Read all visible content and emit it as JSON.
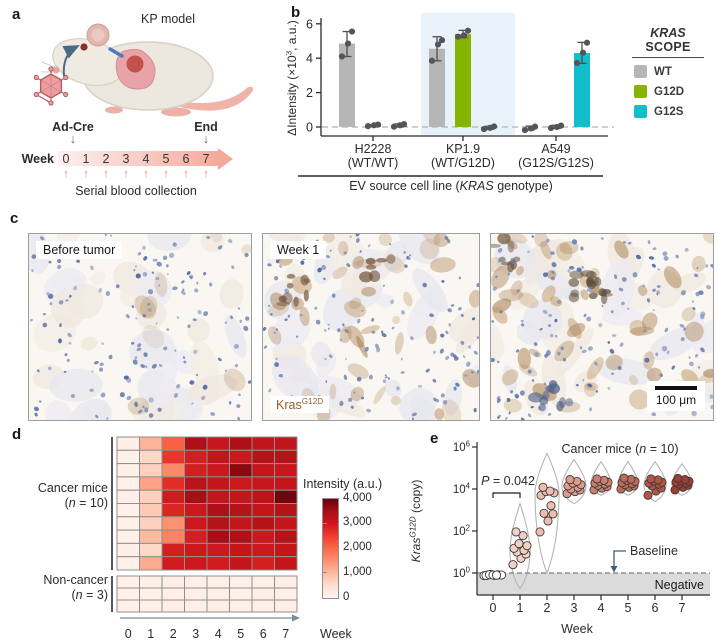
{
  "panels": {
    "a": {
      "label": "a",
      "title": "KP model",
      "timeline": {
        "induction_label": "Ad-Cre",
        "end_label": "End",
        "axis_label": "Week",
        "weeks": [
          "0",
          "1",
          "2",
          "3",
          "4",
          "5",
          "6",
          "7"
        ],
        "caption": "Serial blood collection"
      }
    },
    "b": {
      "label": "b",
      "legend": {
        "title_line1": "KRAS",
        "title_line2": "SCOPE"
      }
    },
    "c": {
      "label": "c",
      "images": [
        {
          "tag": "Before tumor"
        },
        {
          "tag": "Week 1",
          "stain_segs": [
            {
              "t": "Kras"
            },
            {
              "t": "G12D",
              "s": "sup"
            }
          ]
        },
        {
          "scalebar_label": "100 μm"
        }
      ]
    },
    "d": {
      "label": "d",
      "group1_line1": [
        {
          "t": "Cancer mice"
        }
      ],
      "group1_line2": [
        {
          "t": "("
        },
        {
          "t": "n",
          "s": "i"
        },
        {
          "t": " = 10)"
        }
      ],
      "group2_line1": [
        {
          "t": "Non-cancer"
        }
      ],
      "group2_line2": [
        {
          "t": "("
        },
        {
          "t": "n",
          "s": "i"
        },
        {
          "t": " = 3)"
        }
      ]
    },
    "e": {
      "label": "e",
      "title_segs": [
        {
          "t": "Cancer mice ("
        },
        {
          "t": "n",
          "s": "i"
        },
        {
          "t": " = 10)"
        }
      ],
      "p_segs": [
        {
          "t": "P",
          "s": "i"
        },
        {
          "t": " = 0.042"
        }
      ],
      "baseline_label": "Baseline",
      "negative_label": "Negative",
      "ylabel_segs": [
        {
          "t": "Kras",
          "s": "i"
        },
        {
          "t": "G12D",
          "s": "sup i"
        },
        {
          "t": " (copy)"
        }
      ],
      "xlabel": "Week"
    }
  },
  "chart_data": [
    {
      "id": "scope-bar-chart",
      "type": "bar",
      "ylabel_segs": [
        {
          "t": "ΔIntensity (×10"
        },
        {
          "t": "3",
          "s": "sup"
        },
        {
          "t": ", a.u.)"
        }
      ],
      "xlabel_segs": [
        {
          "t": "EV source cell line ("
        },
        {
          "t": "KRAS",
          "s": "i"
        },
        {
          "t": " genotype)"
        }
      ],
      "ylim": [
        -0.6,
        6.3
      ],
      "yticks": [
        0,
        2,
        4,
        6
      ],
      "categories": [
        [
          "H2228",
          "(WT/WT)"
        ],
        [
          "KP1.9",
          "(WT/G12D)"
        ],
        [
          "A549",
          "(G12S/G12S)"
        ]
      ],
      "highlight_group_index": 1,
      "highlight_color": "#e9f1fa",
      "series": [
        {
          "name": "WT",
          "color": "#b6b6b6",
          "values": [
            4.85,
            4.55,
            -0.08
          ],
          "errlo": [
            4.1,
            3.85,
            -0.18
          ],
          "errhi": [
            5.55,
            5.25,
            0.05
          ],
          "points": [
            [
              4.1,
              4.85,
              5.55
            ],
            [
              3.85,
              4.8,
              5.05
            ],
            [
              -0.18,
              -0.08,
              0.02
            ]
          ]
        },
        {
          "name": "G12D",
          "color": "#84b400",
          "values": [
            0.08,
            5.4,
            0.02
          ],
          "errlo": [
            0.02,
            5.2,
            -0.08
          ],
          "errhi": [
            0.14,
            5.62,
            0.1
          ],
          "points": [
            [
              0.05,
              0.1,
              0.14
            ],
            [
              5.25,
              5.32,
              5.6
            ],
            [
              -0.06,
              0.0,
              0.08
            ]
          ]
        },
        {
          "name": "G12S",
          "color": "#12bec9",
          "values": [
            0.1,
            -0.06,
            4.3
          ],
          "errlo": [
            0.0,
            -0.14,
            3.7
          ],
          "errhi": [
            0.18,
            0.04,
            4.92
          ],
          "points": [
            [
              0.02,
              0.1,
              0.17
            ],
            [
              -0.12,
              -0.05,
              0.03
            ],
            [
              3.72,
              4.32,
              4.9
            ]
          ]
        }
      ]
    },
    {
      "id": "week-intensity-heatmap",
      "type": "heatmap",
      "vmin": 0,
      "vmax": 4000,
      "weeks": [
        "0",
        "1",
        "2",
        "3",
        "4",
        "5",
        "6",
        "7"
      ],
      "xlabel": "Week",
      "colorbar": {
        "title": "Intensity (a.u.)",
        "ticks": [
          {
            "value": 4000,
            "label": "4,000"
          },
          {
            "value": 3000,
            "label": "3,000"
          },
          {
            "value": 2000,
            "label": "2,000"
          },
          {
            "value": 1000,
            "label": "1,000"
          },
          {
            "value": 0,
            "label": "0"
          }
        ]
      },
      "cancer_rows": [
        [
          150,
          1100,
          2100,
          3400,
          3050,
          3400,
          3150,
          3150
        ],
        [
          100,
          600,
          2600,
          2900,
          3100,
          3000,
          3300,
          3300
        ],
        [
          130,
          700,
          1600,
          2900,
          3000,
          3700,
          3100,
          3050
        ],
        [
          100,
          1300,
          2700,
          3250,
          3100,
          3000,
          3050,
          3100
        ],
        [
          150,
          700,
          2950,
          3500,
          3100,
          3100,
          3200,
          3900
        ],
        [
          110,
          800,
          2800,
          3000,
          3400,
          3300,
          3100,
          3300
        ],
        [
          120,
          700,
          1500,
          3000,
          3300,
          3100,
          3300,
          3100
        ],
        [
          100,
          1000,
          1700,
          2900,
          3500,
          3400,
          3000,
          3300
        ],
        [
          140,
          600,
          2900,
          3000,
          3000,
          3100,
          3000,
          3100
        ],
        [
          100,
          1200,
          2950,
          3000,
          2950,
          3100,
          2900,
          3100
        ]
      ],
      "noncancer_rows": [
        [
          120,
          140,
          160,
          150,
          150,
          140,
          150,
          160
        ],
        [
          100,
          130,
          150,
          140,
          150,
          130,
          140,
          150
        ],
        [
          110,
          150,
          170,
          150,
          160,
          150,
          150,
          170
        ]
      ]
    },
    {
      "id": "kras-copy-violin",
      "type": "scatter-violin",
      "x": [
        "0",
        "1",
        "2",
        "3",
        "4",
        "5",
        "6",
        "7"
      ],
      "ytick_exponents": [
        0,
        2,
        4,
        6
      ],
      "baseline_value": 1,
      "values_by_week": [
        [
          0.75,
          0.8,
          0.85,
          0.78,
          0.82,
          0.8,
          0.76,
          0.84,
          0.8,
          0.79
        ],
        [
          2.5,
          5,
          8,
          10,
          12,
          15,
          20,
          25,
          60,
          90
        ],
        [
          90,
          300,
          650,
          700,
          1600,
          5000,
          6500,
          7500,
          8000,
          12000
        ],
        [
          6000,
          7500,
          9000,
          10000,
          12000,
          14000,
          16000,
          19000,
          23000,
          28000
        ],
        [
          9000,
          11000,
          13000,
          15000,
          17000,
          19000,
          21000,
          23000,
          26000,
          30000
        ],
        [
          10000,
          12000,
          14000,
          16000,
          18000,
          20000,
          23000,
          26000,
          29000,
          33000
        ],
        [
          5000,
          8000,
          11000,
          14000,
          17000,
          19000,
          21000,
          24000,
          27000,
          30000
        ],
        [
          9000,
          12000,
          15000,
          17000,
          19000,
          21000,
          23000,
          25000,
          28000,
          32000
        ]
      ],
      "dot_fill_by_week": [
        "#ffffff",
        "#f3d1c7",
        "#eebdb0",
        "#e29a8b",
        "#d07f6e",
        "#c26a59",
        "#b15547",
        "#9e3d31"
      ],
      "violins": [
        null,
        {
          "lo": -0.75,
          "hi": 3.3,
          "peak": 1.1,
          "hw": 10
        },
        {
          "lo": 0.0,
          "hi": 5.7,
          "peak": 3.8,
          "hw": 12
        },
        {
          "lo": 3.3,
          "hi": 5.4,
          "peak": 4.15,
          "hw": 12
        },
        {
          "lo": 3.7,
          "hi": 5.3,
          "peak": 4.25,
          "hw": 10
        },
        {
          "lo": 3.7,
          "hi": 5.3,
          "peak": 4.25,
          "hw": 10
        },
        {
          "lo": 3.4,
          "hi": 5.3,
          "peak": 4.2,
          "hw": 11
        },
        {
          "lo": 3.7,
          "hi": 5.2,
          "peak": 4.25,
          "hw": 10
        }
      ]
    }
  ]
}
